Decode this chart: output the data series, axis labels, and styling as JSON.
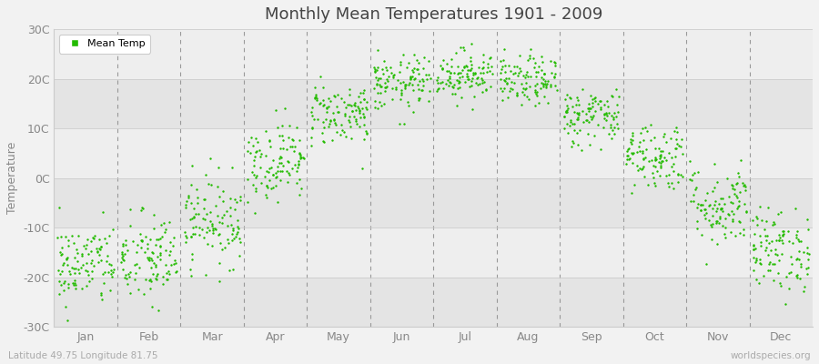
{
  "title": "Monthly Mean Temperatures 1901 - 2009",
  "ylabel": "Temperature",
  "bottom_left_label": "Latitude 49.75 Longitude 81.75",
  "bottom_right_label": "worldspecies.org",
  "legend_label": "Mean Temp",
  "dot_color": "#22bb00",
  "background_color": "#f2f2f2",
  "plot_bg_color": "#ebebeb",
  "band_colors": [
    "#e4e4e4",
    "#eeeeee"
  ],
  "ylim": [
    -30,
    30
  ],
  "yticks": [
    -30,
    -20,
    -10,
    0,
    10,
    20,
    30
  ],
  "ytick_labels": [
    "-30C",
    "-20C",
    "-10C",
    "0C",
    "10C",
    "20C",
    "30C"
  ],
  "months": [
    "Jan",
    "Feb",
    "Mar",
    "Apr",
    "May",
    "Jun",
    "Jul",
    "Aug",
    "Sep",
    "Oct",
    "Nov",
    "Dec"
  ],
  "month_means": [
    -17.5,
    -16.5,
    -8.5,
    3.5,
    13.0,
    19.0,
    21.0,
    19.5,
    12.5,
    4.5,
    -5.5,
    -14.5
  ],
  "month_stds": [
    4.2,
    4.8,
    4.5,
    4.0,
    3.2,
    2.8,
    2.5,
    2.5,
    3.0,
    3.5,
    4.2,
    4.2
  ],
  "n_years": 109,
  "seed": 42,
  "dot_size": 3,
  "figsize": [
    9.0,
    4.0
  ],
  "dpi": 100
}
